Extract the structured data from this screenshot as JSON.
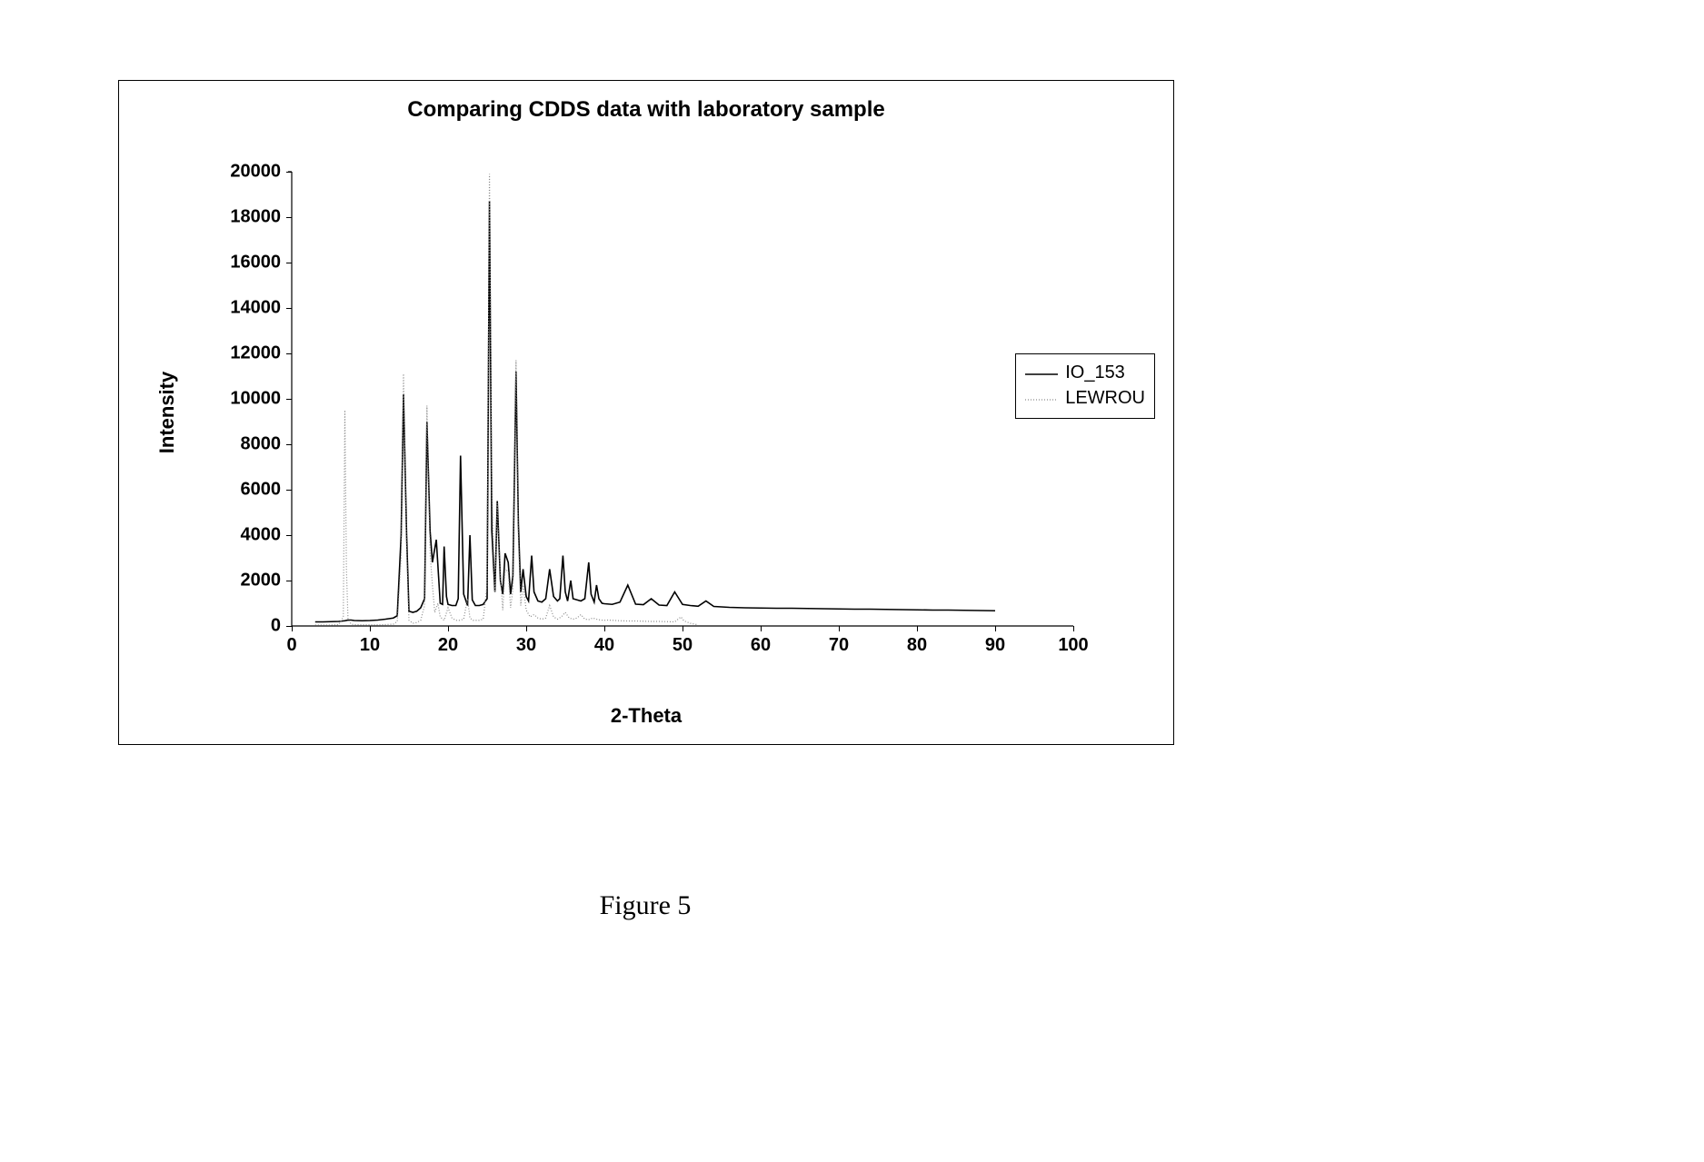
{
  "figure_caption": "Figure 5",
  "chart": {
    "type": "line",
    "title": "Comparing CDDS data with laboratory sample",
    "title_fontsize": 24,
    "title_fontweight": "bold",
    "xlabel": "2-Theta",
    "ylabel": "Intensity",
    "label_fontsize": 22,
    "label_fontweight": "bold",
    "tick_fontsize": 20,
    "tick_fontweight": "bold",
    "xlim": [
      0,
      100
    ],
    "ylim": [
      0,
      20000
    ],
    "xtick_step": 10,
    "ytick_step": 2000,
    "xticks": [
      0,
      10,
      20,
      30,
      40,
      50,
      60,
      70,
      80,
      90,
      100
    ],
    "yticks": [
      0,
      2000,
      4000,
      6000,
      8000,
      10000,
      12000,
      14000,
      16000,
      18000,
      20000
    ],
    "background_color": "#ffffff",
    "axis_color": "#000000",
    "grid": false,
    "legend": {
      "position": "right",
      "border_color": "#000000",
      "items": [
        {
          "label": "IO_153",
          "color": "#000000",
          "dash": "solid",
          "linewidth": 1.6
        },
        {
          "label": "LEWROU",
          "color": "#8a8a8a",
          "dash": "1,2",
          "linewidth": 1.2
        }
      ]
    },
    "series": [
      {
        "name": "IO_153",
        "color": "#000000",
        "dash": "solid",
        "linewidth": 1.6,
        "x": [
          3,
          4,
          5,
          6,
          6.8,
          7.2,
          7.6,
          8,
          9,
          10,
          11,
          12,
          13,
          13.5,
          14,
          14.3,
          14.7,
          15,
          15.5,
          16,
          16.5,
          17,
          17.3,
          17.7,
          18,
          18.5,
          19,
          19.3,
          19.5,
          19.8,
          20,
          20.5,
          21,
          21.3,
          21.6,
          22,
          22.5,
          22.8,
          23.1,
          23.5,
          24,
          24.5,
          25,
          25.3,
          25.6,
          26,
          26.3,
          26.7,
          27,
          27.3,
          27.7,
          28,
          28.3,
          28.7,
          29,
          29.3,
          29.6,
          30,
          30.3,
          30.7,
          31,
          31.5,
          32,
          32.5,
          33,
          33.5,
          34,
          34.3,
          34.7,
          35,
          35.3,
          35.7,
          36,
          36.5,
          37,
          37.5,
          38,
          38.3,
          38.7,
          39,
          39.3,
          39.7,
          40,
          41,
          42,
          43,
          44,
          45,
          46,
          47,
          48,
          49,
          50,
          51,
          52,
          53,
          54,
          55,
          56,
          58,
          60,
          62,
          64,
          66,
          68,
          70,
          72,
          74,
          76,
          78,
          80,
          82,
          84,
          86,
          88,
          90
        ],
        "y": [
          180,
          180,
          190,
          200,
          230,
          260,
          260,
          240,
          230,
          240,
          260,
          300,
          350,
          450,
          4000,
          10200,
          4000,
          650,
          600,
          650,
          800,
          1200,
          9000,
          4200,
          2800,
          3800,
          1000,
          950,
          3500,
          1300,
          950,
          900,
          900,
          1200,
          7500,
          1400,
          900,
          4000,
          1150,
          900,
          900,
          950,
          1200,
          18700,
          4200,
          1500,
          5500,
          2000,
          1400,
          3200,
          2800,
          1400,
          2200,
          11200,
          4500,
          1500,
          2500,
          1300,
          1100,
          3100,
          1500,
          1100,
          1050,
          1200,
          2500,
          1300,
          1100,
          1200,
          3100,
          1500,
          1100,
          2000,
          1200,
          1150,
          1100,
          1200,
          2800,
          1400,
          1050,
          1800,
          1200,
          1000,
          980,
          950,
          1050,
          1800,
          960,
          940,
          1200,
          920,
          900,
          1500,
          950,
          900,
          870,
          1100,
          860,
          840,
          820,
          800,
          790,
          780,
          780,
          770,
          760,
          750,
          740,
          740,
          730,
          720,
          710,
          700,
          700,
          690,
          680,
          670
        ]
      },
      {
        "name": "LEWROU",
        "color": "#8a8a8a",
        "dash": "1,2",
        "linewidth": 1.2,
        "x": [
          3,
          4,
          5,
          6,
          6.6,
          6.8,
          7,
          7.2,
          7.6,
          8,
          9,
          10,
          11,
          12,
          13,
          13.5,
          14,
          14.3,
          14.7,
          15,
          15.5,
          16,
          16.5,
          17,
          17.3,
          17.7,
          18,
          18.3,
          18.7,
          19,
          19.5,
          20,
          20.5,
          21,
          21.5,
          22,
          22.5,
          22.8,
          23.2,
          23.5,
          24,
          24.5,
          25,
          25.3,
          25.6,
          26,
          26.3,
          26.7,
          27,
          27.3,
          27.7,
          28,
          28.3,
          28.7,
          29,
          29.3,
          29.6,
          30,
          30.5,
          31,
          31.5,
          32,
          32.5,
          33,
          33.5,
          34,
          34.5,
          35,
          35.5,
          36,
          36.5,
          37,
          37.5,
          38,
          38.5,
          39,
          39.5,
          40,
          40.5,
          41,
          42,
          43,
          44,
          45,
          46,
          47,
          48,
          49,
          49.8,
          50.2,
          51,
          52
        ],
        "y": [
          40,
          40,
          40,
          60,
          400,
          9500,
          2500,
          300,
          80,
          60,
          50,
          50,
          50,
          60,
          80,
          200,
          3000,
          11100,
          3500,
          250,
          120,
          150,
          250,
          900,
          9700,
          3200,
          1800,
          600,
          1000,
          400,
          250,
          800,
          350,
          250,
          250,
          300,
          1200,
          350,
          250,
          250,
          250,
          300,
          1800,
          19900,
          6000,
          1500,
          5400,
          2200,
          700,
          2500,
          2400,
          800,
          1600,
          11700,
          4000,
          900,
          1800,
          700,
          400,
          500,
          350,
          300,
          350,
          900,
          400,
          300,
          400,
          600,
          350,
          300,
          350,
          500,
          300,
          280,
          350,
          300,
          260,
          250,
          260,
          250,
          230,
          220,
          220,
          210,
          200,
          200,
          190,
          180,
          400,
          220,
          120,
          50
        ]
      }
    ]
  }
}
